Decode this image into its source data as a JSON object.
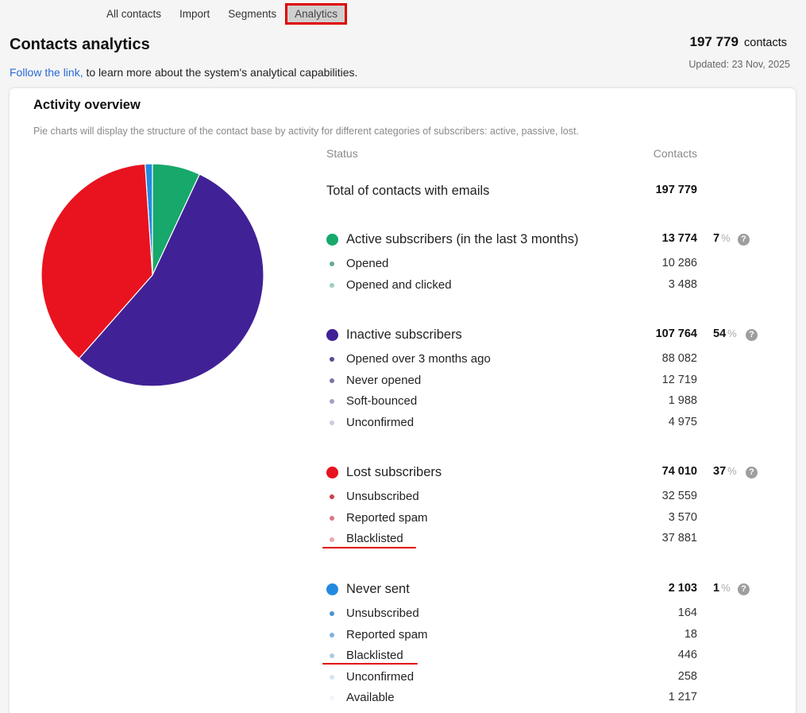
{
  "tabs": [
    {
      "label": "All contacts",
      "active": false
    },
    {
      "label": "Import",
      "active": false
    },
    {
      "label": "Segments",
      "active": false
    },
    {
      "label": "Analytics",
      "active": true
    }
  ],
  "header": {
    "title": "Contacts analytics",
    "link_text": "Follow the link,",
    "link_rest": " to learn more about the system's analytical capabilities.",
    "total_number": "197 779",
    "total_unit": "contacts",
    "updated": "Updated: 23 Nov, 2025"
  },
  "card": {
    "title": "Activity overview",
    "description": "Pie charts will display the structure of the contact base by activity for different categories of subscribers: active, passive, lost.",
    "col_status": "Status",
    "col_contacts": "Contacts",
    "total_label": "Total of contacts with emails",
    "total_value": "197 779"
  },
  "groups": {
    "active": {
      "label": "Active subscribers (in the last 3 months)",
      "value": "13 774",
      "pct": "7",
      "unit": "%",
      "color": "#17a86b",
      "items": [
        {
          "label": "Opened",
          "value": "10 286",
          "color": "#5fae8c"
        },
        {
          "label": "Opened and clicked",
          "value": "3 488",
          "color": "#9fcfb9"
        }
      ]
    },
    "inactive": {
      "label": "Inactive subscribers",
      "value": "107 764",
      "pct": "54",
      "unit": "%",
      "color": "#412196",
      "items": [
        {
          "label": "Opened over 3 months ago",
          "value": "88 082",
          "color": "#5b4a93"
        },
        {
          "label": "Never opened",
          "value": "12 719",
          "color": "#7f72a8"
        },
        {
          "label": "Soft-bounced",
          "value": "1 988",
          "color": "#a89fc4"
        },
        {
          "label": "Unconfirmed",
          "value": "4 975",
          "color": "#cfc9e0"
        }
      ]
    },
    "lost": {
      "label": "Lost subscribers",
      "value": "74 010",
      "pct": "37",
      "unit": "%",
      "color": "#e8131f",
      "items": [
        {
          "label": "Unsubscribed",
          "value": "32 559",
          "color": "#c9424d"
        },
        {
          "label": "Reported spam",
          "value": "3 570",
          "color": "#d8787f"
        },
        {
          "label": "Blacklisted",
          "value": "37 881",
          "color": "#eba8ad"
        }
      ]
    },
    "never": {
      "label": "Never sent",
      "value": "2 103",
      "pct": "1",
      "unit": "%",
      "color": "#2389e0",
      "items": [
        {
          "label": "Unsubscribed",
          "value": "164",
          "color": "#4c94cf"
        },
        {
          "label": "Reported spam",
          "value": "18",
          "color": "#7fb2dd"
        },
        {
          "label": "Blacklisted",
          "value": "446",
          "color": "#a9cbe8"
        },
        {
          "label": "Unconfirmed",
          "value": "258",
          "color": "#d3e5f4"
        },
        {
          "label": "Available",
          "value": "1 217",
          "color": "#eef5fb"
        }
      ]
    }
  },
  "chart_data": {
    "type": "pie",
    "categories": [
      "Active subscribers (in the last 3 months)",
      "Inactive subscribers",
      "Lost subscribers",
      "Never sent"
    ],
    "values": [
      13774,
      107764,
      74010,
      2103
    ],
    "colors": [
      "#17a86b",
      "#412196",
      "#e8131f",
      "#2389e0"
    ]
  }
}
